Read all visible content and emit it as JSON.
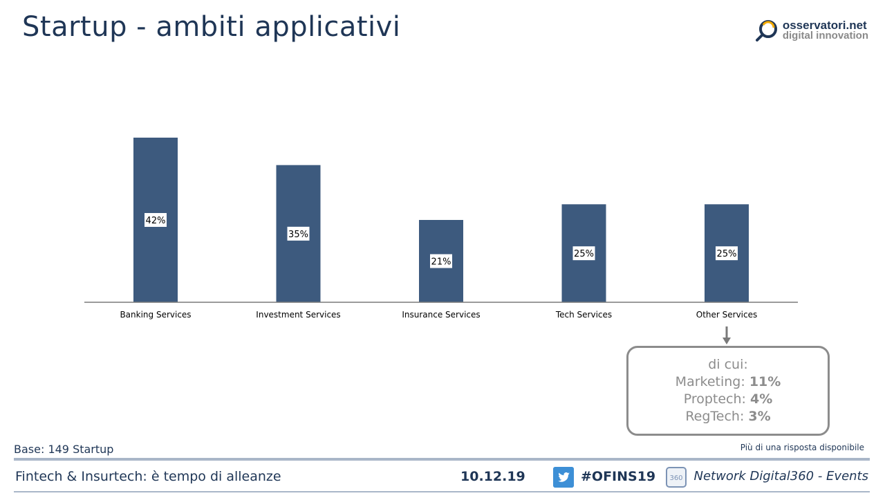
{
  "slide": {
    "title": "Startup - ambiti applicativi"
  },
  "logo": {
    "line1": "osservatori.net",
    "line2": "digital innovation"
  },
  "chart_data": {
    "type": "bar",
    "categories": [
      "Banking Services",
      "Investment Services",
      "Insurance Services",
      "Tech Services",
      "Other Services"
    ],
    "values": [
      42,
      35,
      21,
      25,
      25
    ],
    "labels": [
      "42%",
      "35%",
      "21%",
      "25%",
      "25%"
    ],
    "ylim": [
      0,
      50
    ],
    "bar_color": "#3d5a7e",
    "grid": false
  },
  "callout": {
    "heading": "di cui:",
    "items": [
      {
        "name": "Marketing:",
        "value": "11%"
      },
      {
        "name": "Proptech:",
        "value": "4%"
      },
      {
        "name": "RegTech:",
        "value": "3%"
      }
    ]
  },
  "base_note": "Base: 149 Startup",
  "response_note": "Più di una risposta disponibile",
  "footer": {
    "event": "Fintech & Insurtech: è tempo di alleanze",
    "date": "10.12.19",
    "hashtag": "#OFINS19",
    "network": "Network Digital360 - Events"
  },
  "colors": {
    "accent": "#1f3656",
    "twitter": "#3d8fd6",
    "callout_border": "#8c8c8c"
  }
}
